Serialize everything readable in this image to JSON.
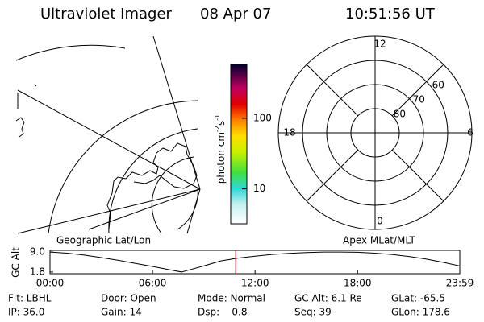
{
  "header": {
    "title": "Ultraviolet Imager",
    "date": "08 Apr 07",
    "time": "10:51:56 UT"
  },
  "colorbar": {
    "label": [
      "photon cm",
      "-2",
      "s",
      "-1"
    ],
    "log": true,
    "lim": [
      3.2,
      580
    ],
    "ticks": [
      10,
      100
    ]
  },
  "panels": {
    "left": "Geographic Lat/Lon",
    "right": "Apex MLat/MLT"
  },
  "polar": {
    "mlt_lim": [
      0,
      24
    ],
    "mlt_ticks": [
      0,
      6,
      12,
      18
    ],
    "mlat_lim": [
      90,
      50
    ],
    "mlat_ticks": [
      60,
      70,
      80
    ]
  },
  "altitude": {
    "ylabel": "GC Alt",
    "ylim": [
      1.2,
      9.6
    ],
    "yticks": [
      1.8,
      {
        "value": 9,
        "label": "9.0"
      }
    ],
    "xlim": [
      0,
      23.9833
    ],
    "xticks": [
      {
        "value": 0,
        "label": "00:00"
      },
      {
        "value": 6,
        "label": "06:00"
      },
      {
        "value": 12,
        "label": "12:00"
      },
      {
        "value": 18,
        "label": "18:00"
      },
      {
        "value": 23.9833,
        "label": "23:59"
      }
    ],
    "x": [
      0,
      1,
      2,
      3,
      4,
      5,
      6,
      7,
      7.7,
      8,
      9,
      10,
      11,
      12,
      13,
      14,
      15,
      16,
      17,
      18,
      19,
      20,
      21,
      22,
      23,
      23.9833
    ],
    "values": [
      9.0,
      8.6,
      7.9,
      7.0,
      6.0,
      4.9,
      3.8,
      2.6,
      1.8,
      2.3,
      4.0,
      5.8,
      6.8,
      7.5,
      8.1,
      8.5,
      8.8,
      9.0,
      9.0,
      8.9,
      8.6,
      8.1,
      7.4,
      6.5,
      5.3,
      4.0
    ],
    "marker_hour": 10.8656,
    "color": "#000000",
    "marker_color": "#d00000"
  },
  "footer": [
    [
      "Flt: LBHL",
      "Door: Open",
      "Mode: Normal",
      "GC Alt: 6.1 Re",
      "GLat: -65.5"
    ],
    [
      "IP: 36.0",
      "Gain: 14",
      "Dsp:    0.8",
      "Seq: 39",
      "GLon: 178.6"
    ]
  ]
}
